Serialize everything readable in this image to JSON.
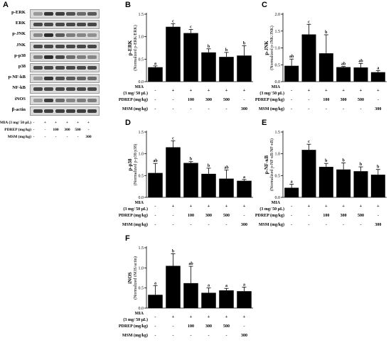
{
  "blot": {
    "letter": "A",
    "proteins": [
      "p-ERK",
      "ERK",
      "p-JNK",
      "JNK",
      "p-p38",
      "p38",
      "p-NF-kB",
      "NF-kB",
      "iNOS",
      "β-actin"
    ],
    "band_intensity": [
      [
        0.35,
        0.9,
        0.85,
        0.75,
        0.6,
        0.7
      ],
      [
        0.8,
        0.8,
        0.8,
        0.8,
        0.8,
        0.8
      ],
      [
        0.45,
        0.95,
        0.7,
        0.5,
        0.45,
        0.4
      ],
      [
        0.8,
        0.8,
        0.8,
        0.8,
        0.8,
        0.8
      ],
      [
        0.5,
        0.95,
        0.8,
        0.6,
        0.5,
        0.45
      ],
      [
        0.8,
        0.8,
        0.8,
        0.8,
        0.8,
        0.8
      ],
      [
        0.35,
        0.9,
        0.75,
        0.7,
        0.65,
        0.6
      ],
      [
        0.8,
        0.8,
        0.8,
        0.8,
        0.8,
        0.8
      ],
      [
        0.35,
        0.85,
        0.6,
        0.45,
        0.5,
        0.5
      ],
      [
        0.85,
        0.85,
        0.85,
        0.85,
        0.85,
        0.85
      ]
    ],
    "treatment_rows": [
      {
        "label": "MIA (3 mg/ 50 μL)",
        "values": [
          "-",
          "+",
          "+",
          "+",
          "+",
          "+"
        ]
      },
      {
        "label": "PDREP (mg/kg)",
        "values": [
          "-",
          "-",
          "100",
          "300",
          "500",
          "-"
        ]
      },
      {
        "label": "MSM (mg/kg)",
        "values": [
          "-",
          "-",
          "-",
          "-",
          "-",
          "300"
        ]
      }
    ]
  },
  "treatment_labels": {
    "mia_line1": "MIA",
    "mia_line2": "(3 mg/ 50 μL)",
    "pdrep": "PDREP (mg/kg)",
    "msm": "MSM (mg/kg)",
    "mia_values": [
      "-",
      "+",
      "+",
      "+",
      "+",
      "+"
    ],
    "pdrep_values": [
      "-",
      "-",
      "100",
      "300",
      "500",
      "-"
    ],
    "msm_values": [
      "-",
      "-",
      "-",
      "-",
      "-",
      "300"
    ]
  },
  "chart_data": [
    {
      "panel": "B",
      "type": "bar",
      "ylabel_main": "p-ERK",
      "ylabel_sub": "(Normalized p-ERK/ERK)",
      "ylim": [
        0,
        1.5
      ],
      "yticks": [
        "0.0",
        "0.5",
        "1.0",
        "1.5"
      ],
      "values": [
        0.32,
        1.22,
        1.08,
        0.65,
        0.55,
        0.58
      ],
      "errors": [
        0.03,
        0.07,
        0.08,
        0.08,
        0.1,
        0.22
      ],
      "letters": [
        "a",
        "c",
        "c",
        "b",
        "b",
        "b"
      ]
    },
    {
      "panel": "C",
      "type": "bar",
      "ylabel_main": "p-JNK",
      "ylabel_sub": "(Normalized p-JNK/JNK)",
      "ylim": [
        0,
        2.0
      ],
      "yticks": [
        "0.0",
        "0.5",
        "1.0",
        "1.5",
        "2.0"
      ],
      "values": [
        0.47,
        1.4,
        0.84,
        0.43,
        0.42,
        0.28
      ],
      "errors": [
        0.2,
        0.3,
        0.55,
        0.02,
        0.12,
        0.05
      ],
      "letters": [
        "ab",
        "c",
        "b",
        "ab",
        "ab",
        "a"
      ]
    },
    {
      "panel": "D",
      "type": "bar",
      "ylabel_main": "p-p38",
      "ylabel_sub": "(Normalized p-p38/p38)",
      "ylim": [
        0,
        1.5
      ],
      "yticks": [
        "0.0",
        "0.5",
        "1.0",
        "1.5"
      ],
      "values": [
        0.56,
        1.15,
        0.79,
        0.54,
        0.43,
        0.38
      ],
      "errors": [
        0.22,
        0.15,
        0.03,
        0.13,
        0.2,
        0.03
      ],
      "letters": [
        "ab",
        "c",
        "b",
        "b",
        "ab",
        "a"
      ]
    },
    {
      "panel": "E",
      "type": "bar",
      "ylabel_main": "p-NF-κB",
      "ylabel_sub": "(Normalized p-NF-κB/NF-κB)",
      "ylim": [
        0,
        1.5
      ],
      "yticks": [
        "0.0",
        "0.5",
        "1.0",
        "1.5"
      ],
      "values": [
        0.22,
        1.09,
        0.7,
        0.64,
        0.6,
        0.52
      ],
      "errors": [
        0.08,
        0.13,
        0.08,
        0.15,
        0.1,
        0.12
      ],
      "letters": [
        "a",
        "c",
        "b",
        "b",
        "b",
        "b"
      ]
    },
    {
      "panel": "F",
      "type": "bar",
      "ylabel_main": "iNOS",
      "ylabel_sub": "(Normalized iNOS/actin)",
      "ylim": [
        0,
        1.5
      ],
      "yticks": [
        "0.0",
        "0.5",
        "1.0",
        "1.5"
      ],
      "values": [
        0.33,
        1.05,
        0.62,
        0.38,
        0.44,
        0.42
      ],
      "errors": [
        0.23,
        0.3,
        0.42,
        0.12,
        0.05,
        0.1
      ],
      "letters": [
        "a",
        "b",
        "ab",
        "a",
        "a",
        "a"
      ]
    }
  ]
}
